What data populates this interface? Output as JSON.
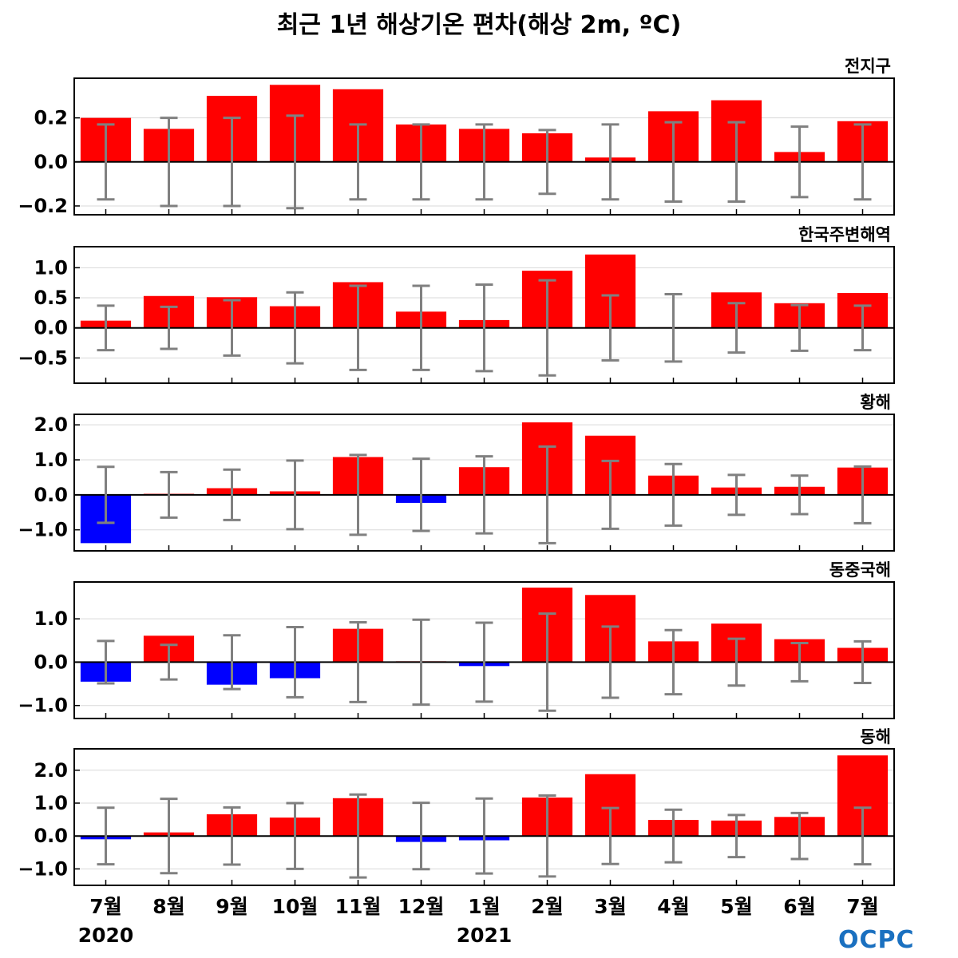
{
  "title": "최근 1년 해상기온 편차(해상 2m, ºC)",
  "logo_text": "OCPC",
  "colors": {
    "positive": "#ff0000",
    "negative": "#0000ff",
    "errorbar": "#808080",
    "zero": "#000000",
    "grid": "#d9d9d9"
  },
  "chart_data": [
    {
      "type": "bar",
      "title": "전지구",
      "categories": [
        "7월",
        "8월",
        "9월",
        "10월",
        "11월",
        "12월",
        "1월",
        "2월",
        "3월",
        "4월",
        "5월",
        "6월",
        "7월"
      ],
      "values": [
        0.2,
        0.15,
        0.3,
        0.35,
        0.33,
        0.17,
        0.15,
        0.13,
        0.02,
        0.23,
        0.28,
        0.045,
        0.185
      ],
      "error_range": [
        0.17,
        0.2,
        0.2,
        0.21,
        0.17,
        0.17,
        0.17,
        0.145,
        0.17,
        0.18,
        0.18,
        0.16,
        0.17
      ],
      "ylim": [
        -0.24,
        0.38
      ],
      "yticks": [
        -0.2,
        0.0,
        0.2
      ],
      "ytick_labels": [
        "−0.2",
        "0.0",
        "0.2"
      ],
      "grid": true
    },
    {
      "type": "bar",
      "title": "한국주변해역",
      "categories": [
        "7월",
        "8월",
        "9월",
        "10월",
        "11월",
        "12월",
        "1월",
        "2월",
        "3월",
        "4월",
        "5월",
        "6월",
        "7월"
      ],
      "values": [
        0.12,
        0.53,
        0.51,
        0.36,
        0.76,
        0.27,
        0.13,
        0.95,
        1.22,
        0.01,
        0.59,
        0.41,
        0.58
      ],
      "error_range": [
        0.37,
        0.35,
        0.46,
        0.59,
        0.7,
        0.7,
        0.72,
        0.79,
        0.54,
        0.56,
        0.41,
        0.38,
        0.37
      ],
      "ylim": [
        -0.92,
        1.35
      ],
      "yticks": [
        -0.5,
        0.0,
        0.5,
        1.0
      ],
      "ytick_labels": [
        "−0.5",
        "0.0",
        "0.5",
        "1.0"
      ],
      "grid": true
    },
    {
      "type": "bar",
      "title": "황해",
      "categories": [
        "7월",
        "8월",
        "9월",
        "10월",
        "11월",
        "12월",
        "1월",
        "2월",
        "3월",
        "4월",
        "5월",
        "6월",
        "7월"
      ],
      "values": [
        -1.38,
        0.03,
        0.19,
        0.1,
        1.08,
        -0.23,
        0.79,
        2.07,
        1.69,
        0.55,
        0.21,
        0.23,
        0.78
      ],
      "error_range": [
        0.8,
        0.65,
        0.72,
        0.98,
        1.14,
        1.03,
        1.1,
        1.38,
        0.97,
        0.88,
        0.57,
        0.55,
        0.81
      ],
      "ylim": [
        -1.6,
        2.3
      ],
      "yticks": [
        -1.0,
        0.0,
        1.0,
        2.0
      ],
      "ytick_labels": [
        "−1.0",
        "0.0",
        "1.0",
        "2.0"
      ],
      "grid": true
    },
    {
      "type": "bar",
      "title": "동중국해",
      "categories": [
        "7월",
        "8월",
        "9월",
        "10월",
        "11월",
        "12월",
        "1월",
        "2월",
        "3월",
        "4월",
        "5월",
        "6월",
        "7월"
      ],
      "values": [
        -0.45,
        0.61,
        -0.52,
        -0.37,
        0.77,
        0.02,
        -0.09,
        1.72,
        1.55,
        0.48,
        0.89,
        0.53,
        0.33
      ],
      "error_range": [
        0.49,
        0.4,
        0.62,
        0.81,
        0.92,
        0.98,
        0.91,
        1.12,
        0.82,
        0.74,
        0.54,
        0.44,
        0.48
      ],
      "ylim": [
        -1.3,
        1.85
      ],
      "yticks": [
        -1.0,
        0.0,
        1.0
      ],
      "ytick_labels": [
        "−1.0",
        "0.0",
        "1.0"
      ],
      "grid": true
    },
    {
      "type": "bar",
      "title": "동해",
      "categories": [
        "7월",
        "8월",
        "9월",
        "10월",
        "11월",
        "12월",
        "1월",
        "2월",
        "3월",
        "4월",
        "5월",
        "6월",
        "7월"
      ],
      "values": [
        -0.1,
        0.11,
        0.66,
        0.56,
        1.15,
        -0.18,
        -0.13,
        1.17,
        1.88,
        0.49,
        0.47,
        0.58,
        2.45
      ],
      "error_range": [
        0.86,
        1.13,
        0.87,
        1.0,
        1.26,
        1.01,
        1.14,
        1.23,
        0.85,
        0.8,
        0.64,
        0.7,
        0.86
      ],
      "ylim": [
        -1.5,
        2.65
      ],
      "yticks": [
        -1.0,
        0.0,
        1.0,
        2.0
      ],
      "ytick_labels": [
        "−1.0",
        "0.0",
        "1.0",
        "2.0"
      ],
      "grid": true
    }
  ],
  "x_axis": {
    "tick_labels": [
      "7월",
      "8월",
      "9월",
      "10월",
      "11월",
      "12월",
      "1월",
      "2월",
      "3월",
      "4월",
      "5월",
      "6월",
      "7월"
    ],
    "year_labels": [
      {
        "index": 0,
        "text": "2020"
      },
      {
        "index": 6,
        "text": "2021"
      }
    ]
  }
}
